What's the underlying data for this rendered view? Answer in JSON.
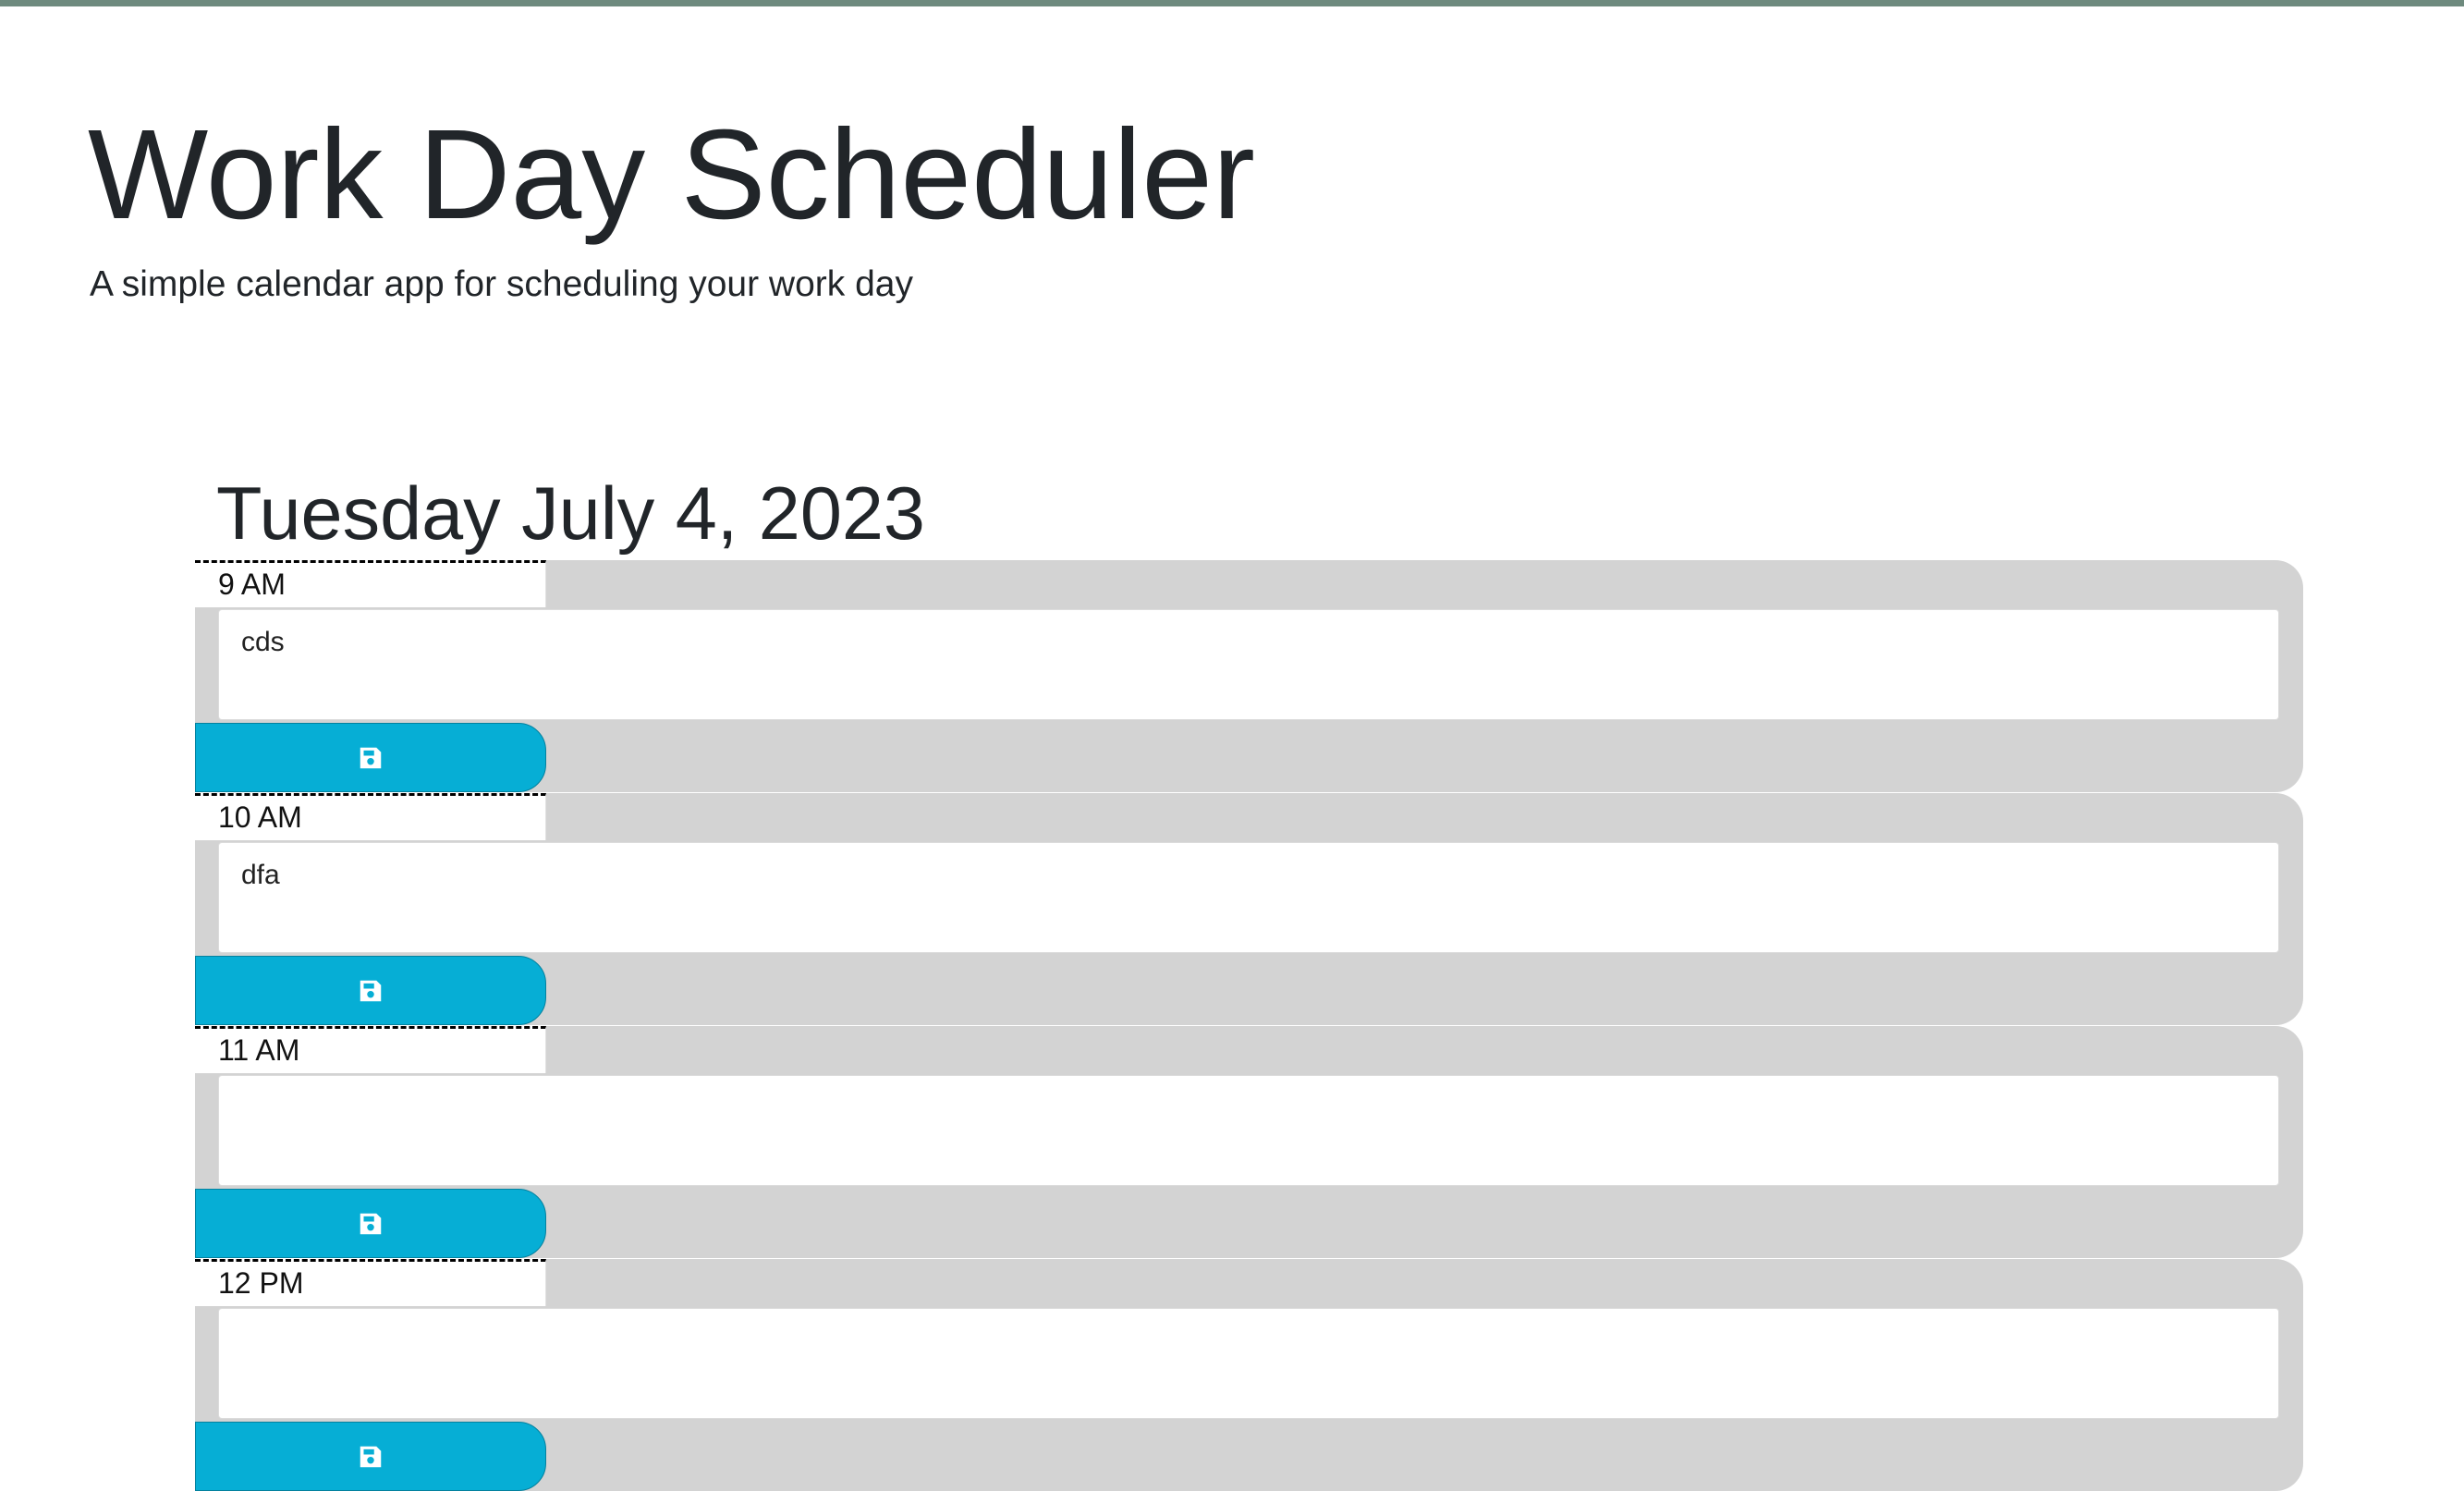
{
  "header": {
    "title": "Work Day Scheduler",
    "subtitle": "A simple calendar app for scheduling your work day"
  },
  "current_day": "Tuesday July 4, 2023",
  "colors": {
    "top_bar": "#6e8a7e",
    "block_background": "#d3d3d3",
    "save_button": "#06aed5"
  },
  "schedule": {
    "blocks": [
      {
        "hour": "9 AM",
        "text": "cds",
        "save_icon": "save-icon"
      },
      {
        "hour": "10 AM",
        "text": "dfa",
        "save_icon": "save-icon"
      },
      {
        "hour": "11 AM",
        "text": "",
        "save_icon": "save-icon"
      },
      {
        "hour": "12 PM",
        "text": "",
        "save_icon": "save-icon"
      }
    ]
  }
}
